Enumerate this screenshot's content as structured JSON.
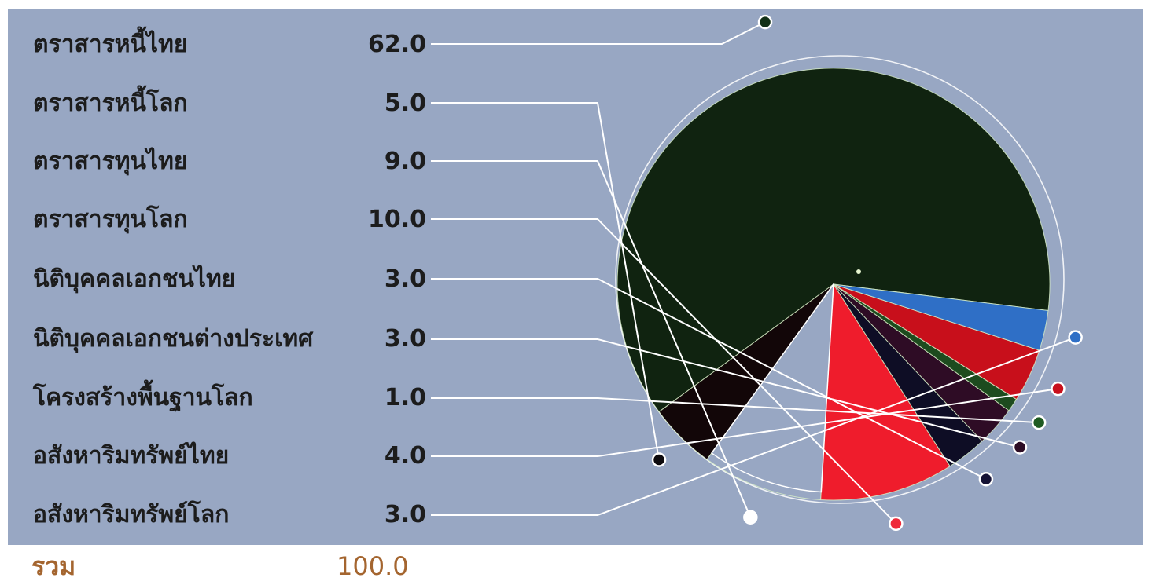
{
  "chart_data": {
    "type": "pie",
    "categories": [
      "ตราสารหนี้ไทย",
      "ตราสารหนี้โลก",
      "ตราสารทุนไทย",
      "ตราสารทุนโลก",
      "นิติบุคคลเอกชนไทย",
      "นิติบุคคลเอกชนต่างประเทศ",
      "โครงสร้างพื้นฐานโลก",
      "อสังหาริมทรัพย์ไทย",
      "อสังหาริมทรัพย์โลก"
    ],
    "values": [
      62.0,
      5.0,
      9.0,
      10.0,
      3.0,
      3.0,
      1.0,
      4.0,
      3.0
    ],
    "value_labels": [
      "62.0",
      "5.0",
      "9.0",
      "10.0",
      "3.0",
      "3.0",
      "1.0",
      "4.0",
      "3.0"
    ],
    "colors": [
      "#102310",
      "#120608",
      "#98a7c3",
      "#ef1c2c",
      "#0e0d25",
      "#2e0c25",
      "#1d4b1e",
      "#c80f1b",
      "#2f6fc6"
    ],
    "marker_colors": [
      "#123015",
      "#0d0a0d",
      "#ffffff",
      "#ef2a3a",
      "#151234",
      "#2c0c24",
      "#1e5a22",
      "#c8101c",
      "#2f6fc6"
    ],
    "start_angle_deg": -7,
    "direction": "counterclockwise",
    "legend_position": "left",
    "total_label": "รวม",
    "total_value": "100.0"
  },
  "colors": {
    "panel_background": "#98a7c3",
    "leader_line": "#ffffff",
    "total_text": "#a4652f",
    "label_text": "#1c1c1c"
  }
}
